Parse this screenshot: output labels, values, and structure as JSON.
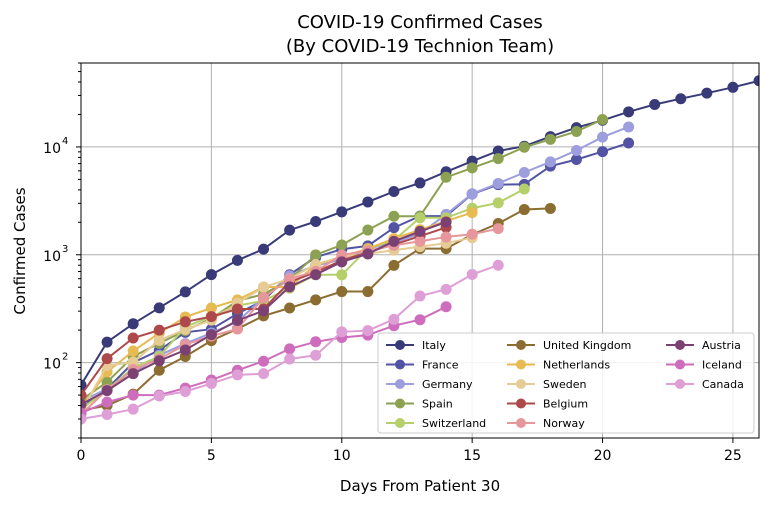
{
  "chart_data": {
    "type": "line",
    "title": "COVID-19 Confirmed Cases",
    "subtitle": "(By COVID-19 Technion Team)",
    "xlabel": "Days From Patient 30",
    "ylabel": "Confirmed Cases",
    "x_scale": "linear",
    "y_scale": "log",
    "xlim": [
      0,
      26
    ],
    "ylim": [
      20,
      60000
    ],
    "xticks": [
      0,
      5,
      10,
      15,
      20,
      25
    ],
    "xtick_labels": [
      "0",
      "5",
      "10",
      "15",
      "20",
      "25"
    ],
    "yticks": [
      100,
      1000,
      10000
    ],
    "ytick_labels": [
      "10",
      "10",
      "10"
    ],
    "ytick_exponents": [
      "2",
      "3",
      "4"
    ],
    "grid": true,
    "legend_position": "lower-right",
    "series": [
      {
        "name": "Italy",
        "color": "#393b79",
        "x": [
          0,
          1,
          2,
          3,
          4,
          5,
          6,
          7,
          8,
          9,
          10,
          11,
          12,
          13,
          14,
          15,
          16,
          17,
          18,
          19,
          20,
          21,
          22,
          23,
          24,
          25,
          26
        ],
        "values": [
          62,
          155,
          229,
          322,
          453,
          655,
          888,
          1128,
          1694,
          2036,
          2502,
          3089,
          3858,
          4636,
          5883,
          7375,
          9172,
          10149,
          12462,
          15113,
          17660,
          21157,
          24747,
          27980,
          31506,
          35713,
          41035
        ]
      },
      {
        "name": "France",
        "color": "#5254a3",
        "x": [
          0,
          1,
          2,
          3,
          4,
          5,
          6,
          7,
          8,
          9,
          10,
          11,
          12,
          13,
          14,
          15,
          16,
          17,
          18,
          19,
          20,
          21
        ],
        "values": [
          38,
          57,
          100,
          130,
          191,
          204,
          285,
          377,
          653,
          949,
          1126,
          1209,
          1784,
          2281,
          2281,
          3661,
          4469,
          4499,
          6633,
          7652,
          9043,
          10871
        ]
      },
      {
        "name": "Germany",
        "color": "#9c9ede",
        "x": [
          0,
          1,
          2,
          3,
          4,
          5,
          6,
          7,
          8,
          9,
          10,
          11,
          12,
          13,
          14,
          15,
          16,
          17,
          18,
          19,
          20,
          21
        ],
        "values": [
          44,
          57,
          79,
          117,
          150,
          188,
          240,
          400,
          639,
          795,
          902,
          1139,
          1296,
          1567,
          2369,
          3675,
          4585,
          5795,
          7272,
          9257,
          12327,
          15320
        ]
      },
      {
        "name": "Spain",
        "color": "#8ca252",
        "x": [
          0,
          1,
          2,
          3,
          4,
          5,
          6,
          7,
          8,
          9,
          10,
          11,
          12,
          13,
          14,
          15,
          16,
          17,
          18,
          19,
          20
        ],
        "values": [
          45,
          66,
          114,
          151,
          198,
          257,
          374,
          430,
          589,
          999,
          1231,
          1695,
          2277,
          2277,
          5232,
          6391,
          7798,
          9942,
          11748,
          13910,
          17963
        ]
      },
      {
        "name": "Switzerland",
        "color": "#b5cf6b",
        "x": [
          0,
          1,
          2,
          3,
          4,
          5,
          6,
          7,
          8,
          9,
          10,
          11,
          12,
          13,
          14,
          15,
          16,
          17
        ],
        "values": [
          37,
          56,
          90,
          114,
          214,
          268,
          337,
          374,
          491,
          652,
          652,
          1139,
          1359,
          2200,
          2200,
          2700,
          3028,
          4075
        ]
      },
      {
        "name": "United Kingdom",
        "color": "#8c6d31",
        "x": [
          0,
          1,
          2,
          3,
          4,
          5,
          6,
          7,
          8,
          9,
          10,
          11,
          12,
          13,
          14,
          15,
          16,
          17,
          18
        ],
        "values": [
          36,
          40,
          51,
          85,
          114,
          160,
          206,
          271,
          321,
          382,
          456,
          456,
          798,
          1140,
          1140,
          1543,
          1950,
          2626,
          2689
        ]
      },
      {
        "name": "Netherlands",
        "color": "#e7ba52",
        "x": [
          0,
          1,
          2,
          3,
          4,
          5,
          6,
          7,
          8,
          9,
          10,
          11,
          12,
          13,
          14,
          15
        ],
        "values": [
          38,
          82,
          128,
          188,
          265,
          321,
          382,
          503,
          503,
          804,
          959,
          1135,
          1413,
          1705,
          2051,
          2460
        ]
      },
      {
        "name": "Sweden",
        "color": "#e7cb94",
        "x": [
          0,
          1,
          2,
          3,
          4,
          5,
          6,
          7,
          8,
          9,
          10,
          11,
          12,
          13,
          14,
          15
        ],
        "values": [
          35,
          94,
          101,
          161,
          203,
          248,
          355,
          500,
          599,
          814,
          961,
          1022,
          1103,
          1190,
          1279,
          1439
        ]
      },
      {
        "name": "Belgium",
        "color": "#ad494a",
        "x": [
          0,
          1,
          2,
          3,
          4,
          5,
          6,
          7,
          8,
          9,
          10,
          11,
          12,
          13,
          14
        ],
        "values": [
          50,
          109,
          169,
          200,
          239,
          267,
          314,
          314,
          559,
          689,
          886,
          1058,
          1243,
          1486,
          1795
        ]
      },
      {
        "name": "Norway",
        "color": "#e7969c",
        "x": [
          0,
          1,
          2,
          3,
          4,
          5,
          6,
          7,
          8,
          9,
          10,
          11,
          12,
          13,
          14,
          15,
          16
        ],
        "values": [
          33,
          56,
          86,
          108,
          147,
          176,
          205,
          400,
          598,
          702,
          996,
          1090,
          1221,
          1333,
          1463,
          1550,
          1746
        ]
      },
      {
        "name": "Austria",
        "color": "#7b4173",
        "x": [
          0,
          1,
          2,
          3,
          4,
          5,
          6,
          7,
          8,
          9,
          10,
          11,
          12,
          13,
          14
        ],
        "values": [
          41,
          55,
          79,
          104,
          131,
          182,
          246,
          302,
          504,
          655,
          860,
          1018,
          1332,
          1646,
          2013
        ]
      },
      {
        "name": "Iceland",
        "color": "#ce6dbd",
        "x": [
          0,
          1,
          2,
          3,
          4,
          5,
          6,
          7,
          8,
          9,
          10,
          11,
          12,
          13,
          14
        ],
        "values": [
          34,
          43,
          50,
          50,
          58,
          69,
          85,
          103,
          134,
          156,
          171,
          180,
          220,
          250,
          330
        ]
      },
      {
        "name": "Canada",
        "color": "#de9ed6",
        "x": [
          0,
          1,
          2,
          3,
          4,
          5,
          6,
          7,
          8,
          9,
          10,
          11,
          12,
          13,
          14,
          15,
          16
        ],
        "values": [
          30,
          33,
          37,
          49,
          54,
          64,
          77,
          79,
          108,
          117,
          193,
          198,
          252,
          415,
          478,
          657,
          800
        ]
      }
    ]
  }
}
